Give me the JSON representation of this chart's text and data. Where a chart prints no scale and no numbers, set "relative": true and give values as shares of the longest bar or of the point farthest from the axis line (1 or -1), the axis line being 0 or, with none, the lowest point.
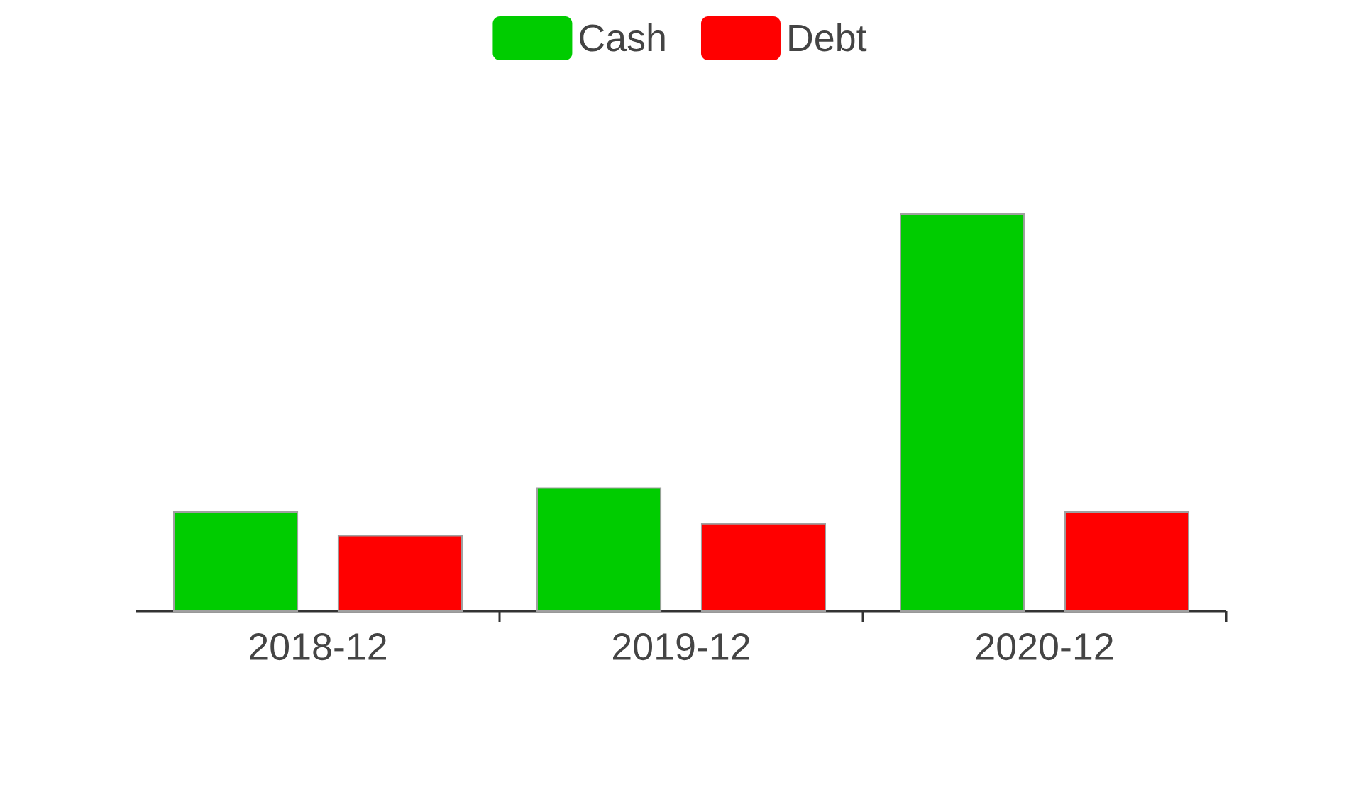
{
  "chart_data": {
    "type": "bar",
    "categories": [
      "2018-12",
      "2019-12",
      "2020-12"
    ],
    "series": [
      {
        "name": "Cash",
        "color": "#00cc00",
        "values": [
          0.25,
          0.31,
          1
        ]
      },
      {
        "name": "Debt",
        "color": "#ff0000",
        "values": [
          0.19,
          0.22,
          0.25
        ]
      }
    ],
    "relative": true,
    "legend": "top"
  }
}
